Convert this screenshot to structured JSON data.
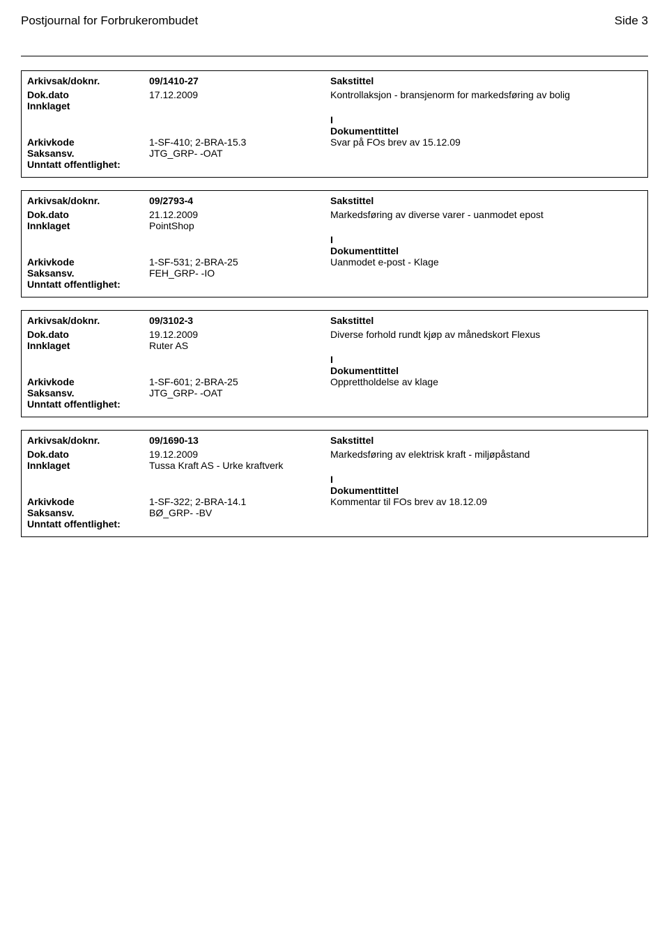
{
  "header": {
    "title": "Postjournal for Forbrukerombudet",
    "page": "Side 3"
  },
  "entries": [
    {
      "arkivsak_label": "Arkivsak/doknr.",
      "arkivsak_value": "09/1410-27",
      "sakstittel_label": "Sakstittel",
      "dokdato_label": "Dok.dato",
      "dokdato_value": "17.12.2009",
      "sakstittel_text": "Kontrollaksjon - bransjenorm for markedsføring av bolig",
      "innklaget_label": "Innklaget",
      "innklaget_value": "",
      "doc_type": "I",
      "dokumenttittel_label": "Dokumenttittel",
      "arkivkode_label": "Arkivkode",
      "arkivkode_value": "1-SF-410; 2-BRA-15.3",
      "dokumenttittel_text": "Svar på FOs brev av 15.12.09",
      "saksansv_label": "Saksansv.",
      "saksansv_value": "JTG_GRP- -OAT",
      "unntatt_label": "Unntatt offentlighet:"
    },
    {
      "arkivsak_label": "Arkivsak/doknr.",
      "arkivsak_value": "09/2793-4",
      "sakstittel_label": "Sakstittel",
      "dokdato_label": "Dok.dato",
      "dokdato_value": "21.12.2009",
      "sakstittel_text": "Markedsføring av diverse varer - uanmodet epost",
      "innklaget_label": "Innklaget",
      "innklaget_value": "PointShop",
      "doc_type": "I",
      "dokumenttittel_label": "Dokumenttittel",
      "arkivkode_label": "Arkivkode",
      "arkivkode_value": "1-SF-531; 2-BRA-25",
      "dokumenttittel_text": "Uanmodet e-post - Klage",
      "saksansv_label": "Saksansv.",
      "saksansv_value": "FEH_GRP- -IO",
      "unntatt_label": "Unntatt offentlighet:"
    },
    {
      "arkivsak_label": "Arkivsak/doknr.",
      "arkivsak_value": "09/3102-3",
      "sakstittel_label": "Sakstittel",
      "dokdato_label": "Dok.dato",
      "dokdato_value": "19.12.2009",
      "sakstittel_text": "Diverse forhold rundt kjøp av månedskort Flexus",
      "innklaget_label": "Innklaget",
      "innklaget_value": "Ruter AS",
      "doc_type": "I",
      "dokumenttittel_label": "Dokumenttittel",
      "arkivkode_label": "Arkivkode",
      "arkivkode_value": "1-SF-601; 2-BRA-25",
      "dokumenttittel_text": "Opprettholdelse av klage",
      "saksansv_label": "Saksansv.",
      "saksansv_value": "JTG_GRP- -OAT",
      "unntatt_label": "Unntatt offentlighet:"
    },
    {
      "arkivsak_label": "Arkivsak/doknr.",
      "arkivsak_value": "09/1690-13",
      "sakstittel_label": "Sakstittel",
      "dokdato_label": "Dok.dato",
      "dokdato_value": "19.12.2009",
      "sakstittel_text": "Markedsføring av elektrisk kraft - miljøpåstand",
      "innklaget_label": "Innklaget",
      "innklaget_value": "Tussa Kraft AS - Urke kraftverk",
      "doc_type": "I",
      "dokumenttittel_label": "Dokumenttittel",
      "arkivkode_label": "Arkivkode",
      "arkivkode_value": "1-SF-322; 2-BRA-14.1",
      "dokumenttittel_text": "Kommentar til FOs brev av 18.12.09",
      "saksansv_label": "Saksansv.",
      "saksansv_value": "BØ_GRP- -BV",
      "unntatt_label": "Unntatt offentlighet:"
    }
  ]
}
